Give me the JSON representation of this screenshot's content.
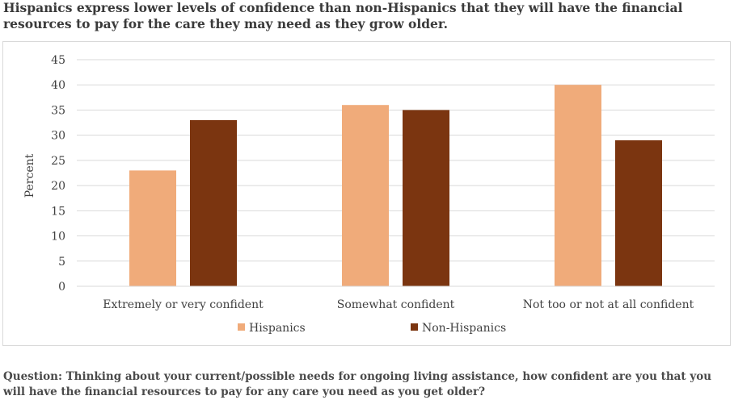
{
  "title": "Hispanics express lower levels of confidence than non-Hispanics that they will have the financial resources to pay for the care they may need as they grow older.",
  "question": "Question: Thinking about your current/possible needs for ongoing living assistance, how confident are you that you will have the financial resources to pay for any care you need as you get older?",
  "chart_data": {
    "type": "bar",
    "categories": [
      "Extremely or very confident",
      "Somewhat confident",
      "Not too or not at all confident"
    ],
    "series": [
      {
        "name": "Hispanics",
        "values": [
          23,
          36,
          40
        ],
        "color": "#f0ab7a"
      },
      {
        "name": "Non-Hispanics",
        "values": [
          33,
          35,
          29
        ],
        "color": "#7b3510"
      }
    ],
    "ylabel": "Percent",
    "ylim": [
      0,
      45
    ],
    "yticks": [
      0,
      5,
      10,
      15,
      20,
      25,
      30,
      35,
      40,
      45
    ],
    "grid": true,
    "legend_position": "bottom"
  }
}
